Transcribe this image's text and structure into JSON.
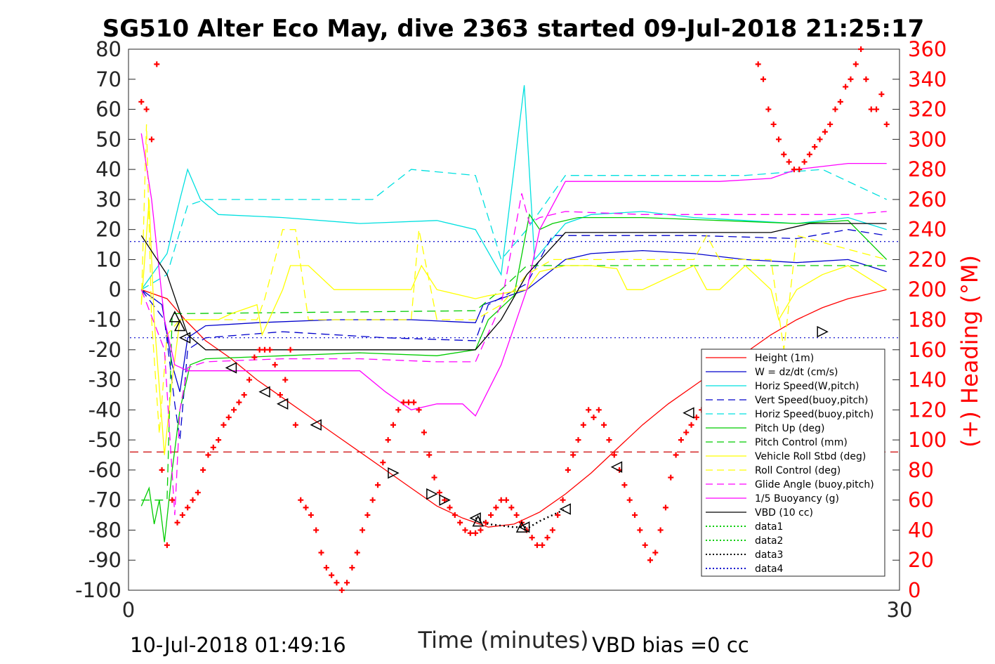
{
  "chart_data": {
    "type": "line",
    "title": "SG510 Alter Eco May, dive 2363 started 09-Jul-2018 21:25:17",
    "xlabel": "Time (minutes)",
    "ylabel_right": "(+) Heading (°M)",
    "xlim": [
      0,
      30
    ],
    "ylim_left": [
      -100,
      80
    ],
    "ylim_right": [
      0,
      360
    ],
    "x_ticks": [
      "0",
      "30"
    ],
    "y_ticks_left": [
      "80",
      "70",
      "60",
      "50",
      "40",
      "30",
      "20",
      "10",
      "0",
      "-10",
      "-20",
      "-30",
      "-40",
      "-50",
      "-60",
      "-70",
      "-80",
      "-90",
      "-100"
    ],
    "y_ticks_right": [
      "360",
      "340",
      "320",
      "300",
      "280",
      "260",
      "240",
      "220",
      "200",
      "180",
      "160",
      "140",
      "120",
      "100",
      "80",
      "60",
      "40",
      "20",
      "0"
    ],
    "grid": false,
    "legend_position": "lower-right",
    "footer_left": "10-Jul-2018 01:49:16",
    "footer_right": "VBD bias =0 cc",
    "series": [
      {
        "name": "Height (1m)",
        "color": "#ff0000",
        "style": "solid",
        "x": [
          0.5,
          1.5,
          2.2,
          3.0,
          4.0,
          5.0,
          6.0,
          7.0,
          8.0,
          9.0,
          10.0,
          11.0,
          12.0,
          13.0,
          14.0,
          15.0,
          16.0,
          17.0,
          18.0,
          19.0,
          20.0,
          21.0,
          22.0,
          23.0,
          24.0,
          25.0,
          26.0,
          27.0,
          28.0,
          29.5
        ],
        "y": [
          0,
          -3,
          -10,
          -17,
          -23,
          -30,
          -36,
          -42,
          -48,
          -54,
          -60,
          -66,
          -72,
          -76,
          -79,
          -78,
          -74,
          -68,
          -61,
          -53,
          -45,
          -38,
          -32,
          -26,
          -21,
          -15,
          -10,
          -6,
          -3,
          0
        ]
      },
      {
        "name": "W = dz/dt (cm/s)",
        "color": "#0000cc",
        "style": "solid",
        "x": [
          0.5,
          1.3,
          1.7,
          2.0,
          2.3,
          3.0,
          5.0,
          8.0,
          11.0,
          13.5,
          13.8,
          15.5,
          17.0,
          18.0,
          20.0,
          22.0,
          24.0,
          26.0,
          28.0,
          29.5
        ],
        "y": [
          0,
          -5,
          -25,
          -34,
          -16,
          -12,
          -11,
          -10,
          -10,
          -11,
          -5,
          0,
          10,
          12,
          13,
          12,
          10,
          9,
          10,
          6
        ]
      },
      {
        "name": "Horiz Speed(W,pitch)",
        "color": "#00e0e0",
        "style": "solid",
        "x": [
          0.5,
          1.5,
          2.0,
          2.3,
          2.8,
          3.5,
          6.0,
          9.0,
          12.0,
          13.5,
          14.5,
          15.4,
          15.8,
          17.0,
          18.0,
          20.0,
          22.0,
          24.0,
          26.0,
          28.0,
          29.5
        ],
        "y": [
          0,
          12,
          30,
          40,
          30,
          25,
          24,
          22,
          23,
          20,
          5,
          68,
          10,
          22,
          25,
          26,
          24,
          23,
          22,
          24,
          20
        ]
      },
      {
        "name": "Vert Speed(buoy,pitch)",
        "color": "#0000cc",
        "style": "dashed",
        "x": [
          0.5,
          1.4,
          1.8,
          2.0,
          2.3,
          3.0,
          6.0,
          10.0,
          13.5,
          14.0,
          15.5,
          16.5,
          18.0,
          22.0,
          26.0,
          28.0,
          29.5
        ],
        "y": [
          0,
          -10,
          -38,
          -50,
          -20,
          -16,
          -14,
          -16,
          -17,
          -5,
          2,
          18,
          18,
          18,
          17,
          20,
          18
        ]
      },
      {
        "name": "Horiz Speed(buoy,pitch)",
        "color": "#00e0e0",
        "style": "dashed",
        "x": [
          0.5,
          1.5,
          2.3,
          3.0,
          6.0,
          9.0,
          9.5,
          11.0,
          13.5,
          14.5,
          15.5,
          17.0,
          20.0,
          24.0,
          27.0,
          29.5
        ],
        "y": [
          0,
          5,
          28,
          30,
          30,
          30,
          30,
          40,
          38,
          10,
          20,
          38,
          38,
          38,
          40,
          30
        ]
      },
      {
        "name": "Pitch Up (deg)",
        "color": "#00cc00",
        "style": "solid",
        "x": [
          0.5,
          0.8,
          1.0,
          1.2,
          1.4,
          1.7,
          2.0,
          2.4,
          3.0,
          6.0,
          9.0,
          12.0,
          13.5,
          14.0,
          15.0,
          15.6,
          16.0,
          16.5,
          17.5,
          20.0,
          23.0,
          26.0,
          28.0,
          29.5
        ],
        "y": [
          -72,
          -66,
          -78,
          -70,
          -84,
          -60,
          -40,
          -25,
          -23,
          -22,
          -21,
          -22,
          -20,
          -10,
          -2,
          25,
          20,
          22,
          24,
          24,
          23,
          22,
          23,
          10
        ]
      },
      {
        "name": "Pitch Control (mm)",
        "color": "#00cc00",
        "style": "dashed",
        "x": [
          0.5,
          1.5,
          1.7,
          1.9,
          13.5,
          14.5,
          15.5,
          29.5
        ],
        "y": [
          -70,
          -70,
          -8,
          -8,
          -7,
          0,
          8,
          8
        ]
      },
      {
        "name": "Vehicle Roll Stbd (deg)",
        "color": "#ffff00",
        "style": "solid",
        "x": [
          0.5,
          0.8,
          1.0,
          1.4,
          1.7,
          2.0,
          2.5,
          3.5,
          4.0,
          5.0,
          5.2,
          6.0,
          6.3,
          7.0,
          8.0,
          10.0,
          11.0,
          11.4,
          12.0,
          13.5,
          14.0,
          15.5,
          16.0,
          17.0,
          18.0,
          19.0,
          19.4,
          20.0,
          22.0,
          22.5,
          23.0,
          24.0,
          25.0,
          25.3,
          26.0,
          27.0,
          28.0,
          29.5
        ],
        "y": [
          -5,
          30,
          -10,
          -55,
          -30,
          -10,
          -10,
          -10,
          -8,
          -5,
          -15,
          0,
          8,
          8,
          0,
          0,
          0,
          8,
          0,
          -3,
          -2,
          0,
          6,
          8,
          8,
          7,
          0,
          0,
          8,
          0,
          0,
          8,
          0,
          -10,
          0,
          5,
          8,
          0
        ]
      },
      {
        "name": "Roll Control (deg)",
        "color": "#ffff00",
        "style": "dashed",
        "x": [
          0.5,
          0.7,
          0.9,
          1.2,
          1.5,
          2.0,
          4.0,
          5.0,
          5.3,
          6.0,
          6.5,
          7.0,
          8.0,
          10.0,
          11.0,
          11.3,
          12.0,
          13.5,
          14.5,
          15.5,
          16.5,
          20.0,
          22.0,
          22.5,
          23.0,
          25.0,
          25.5,
          26.0,
          29.5
        ],
        "y": [
          -5,
          55,
          -10,
          -48,
          -15,
          -10,
          -10,
          -10,
          -3,
          20,
          20,
          -10,
          -10,
          -10,
          -10,
          20,
          -10,
          -10,
          -5,
          5,
          10,
          10,
          10,
          18,
          10,
          10,
          -20,
          18,
          10
        ]
      },
      {
        "name": "Glide Angle (buoy,pitch)",
        "color": "#ff00ff",
        "style": "dashed",
        "x": [
          0.5,
          1.4,
          1.8,
          2.0,
          2.3,
          3.0,
          6.0,
          9.0,
          12.0,
          13.5,
          14.5,
          15.3,
          15.6,
          16.0,
          17.0,
          20.0,
          24.0,
          28.0,
          29.5
        ],
        "y": [
          0,
          -20,
          -75,
          -40,
          -26,
          -24,
          -23,
          -23,
          -24,
          -24,
          -5,
          32,
          22,
          24,
          26,
          25,
          25,
          25,
          26
        ]
      },
      {
        "name": "1/5 Buoyancy (g)",
        "color": "#ff00ff",
        "style": "solid",
        "x": [
          0.5,
          0.9,
          1.4,
          1.8,
          2.3,
          3.0,
          5.0,
          8.0,
          9.0,
          10.0,
          11.0,
          12.0,
          13.0,
          13.5,
          14.5,
          15.5,
          16.0,
          17.0,
          20.0,
          23.0,
          25.0,
          26.0,
          28.0,
          29.5
        ],
        "y": [
          52,
          30,
          -10,
          -25,
          -27,
          -27,
          -27,
          -27,
          -27,
          -34,
          -40,
          -38,
          -38,
          -42,
          -25,
          0,
          20,
          36,
          36,
          36,
          37,
          40,
          42,
          42
        ]
      },
      {
        "name": "VBD (10 cc)",
        "color": "#000000",
        "style": "solid",
        "x": [
          0.5,
          1.5,
          2.3,
          3.0,
          6.0,
          13.5,
          14.5,
          15.5,
          17.0,
          20.0,
          25.0,
          26.5,
          29.5
        ],
        "y": [
          18,
          5,
          -15,
          -20,
          -20,
          -20,
          -10,
          5,
          19,
          19,
          19,
          22,
          22
        ]
      },
      {
        "name": "data1",
        "color": "#00cc00",
        "style": "dotted",
        "x": [],
        "y": []
      },
      {
        "name": "data2",
        "color": "#00cc00",
        "style": "dotted",
        "x": [],
        "y": []
      },
      {
        "name": "data3",
        "color": "#000000",
        "style": "dotted",
        "x": [
          13.5,
          14.0,
          15.0,
          15.6,
          16.0,
          17.0
        ],
        "y": [
          -76,
          -78,
          -79,
          -79,
          -77,
          -73
        ]
      },
      {
        "name": "data4",
        "color": "#0000cc",
        "style": "dotted",
        "x": [],
        "y": []
      }
    ],
    "reference_lines": [
      {
        "y": 16,
        "color": "#0000cc",
        "style": "dotted"
      },
      {
        "y": -16,
        "color": "#0000cc",
        "style": "dotted"
      },
      {
        "y": -54,
        "color": "#cc0000",
        "style": "dashed"
      }
    ],
    "markers": [
      {
        "x": 1.8,
        "y": -9,
        "shape": "triangle-up"
      },
      {
        "x": 2.0,
        "y": -12,
        "shape": "triangle-up"
      },
      {
        "x": 2.2,
        "y": -16,
        "shape": "triangle-left"
      },
      {
        "x": 4.0,
        "y": -26,
        "shape": "triangle-left"
      },
      {
        "x": 5.3,
        "y": -34,
        "shape": "triangle-left"
      },
      {
        "x": 6.0,
        "y": -38,
        "shape": "triangle-left"
      },
      {
        "x": 7.3,
        "y": -45,
        "shape": "triangle-left"
      },
      {
        "x": 10.3,
        "y": -61,
        "shape": "triangle-right"
      },
      {
        "x": 11.8,
        "y": -68,
        "shape": "triangle-right"
      },
      {
        "x": 12.3,
        "y": -70,
        "shape": "triangle-right"
      },
      {
        "x": 13.5,
        "y": -76,
        "shape": "triangle-left"
      },
      {
        "x": 13.6,
        "y": -77,
        "shape": "triangle-up"
      },
      {
        "x": 15.3,
        "y": -79,
        "shape": "triangle-up"
      },
      {
        "x": 15.4,
        "y": -79,
        "shape": "triangle-left"
      },
      {
        "x": 17.0,
        "y": -73,
        "shape": "triangle-left"
      },
      {
        "x": 19.0,
        "y": -59,
        "shape": "triangle-left"
      },
      {
        "x": 21.8,
        "y": -41,
        "shape": "triangle-left"
      },
      {
        "x": 23.5,
        "y": -31,
        "shape": "triangle-left"
      },
      {
        "x": 25.3,
        "y": -24,
        "shape": "triangle-left"
      },
      {
        "x": 25.6,
        "y": -23,
        "shape": "triangle-left"
      },
      {
        "x": 27.0,
        "y": -14,
        "shape": "triangle-right"
      }
    ],
    "heading_points": {
      "name": "(+) Heading (°M)",
      "color": "#ff0000",
      "axis": "right",
      "x": [
        0.5,
        0.7,
        0.9,
        1.1,
        1.3,
        1.5,
        1.7,
        1.9,
        2.1,
        2.3,
        2.5,
        2.7,
        2.9,
        3.1,
        3.3,
        3.5,
        3.7,
        3.9,
        4.1,
        4.3,
        4.5,
        4.7,
        4.9,
        5.1,
        5.3,
        5.5,
        5.7,
        5.9,
        6.1,
        6.3,
        6.5,
        6.7,
        6.9,
        7.1,
        7.3,
        7.5,
        7.7,
        7.9,
        8.1,
        8.3,
        8.5,
        8.7,
        8.9,
        9.1,
        9.3,
        9.5,
        9.7,
        9.9,
        10.1,
        10.3,
        10.5,
        10.7,
        10.9,
        11.1,
        11.3,
        11.5,
        11.7,
        11.9,
        12.1,
        12.3,
        12.5,
        12.7,
        12.9,
        13.1,
        13.3,
        13.5,
        13.7,
        13.9,
        14.1,
        14.3,
        14.5,
        14.7,
        14.9,
        15.1,
        15.3,
        15.5,
        15.7,
        15.9,
        16.1,
        16.3,
        16.5,
        16.7,
        16.9,
        17.1,
        17.3,
        17.5,
        17.7,
        17.9,
        18.1,
        18.3,
        18.5,
        18.7,
        18.9,
        19.1,
        19.3,
        19.5,
        19.7,
        19.9,
        20.1,
        20.3,
        20.5,
        20.7,
        20.9,
        21.1,
        21.3,
        21.5,
        21.7,
        21.9,
        22.1,
        22.3,
        22.5,
        22.7,
        22.9,
        23.1,
        23.3,
        23.5,
        23.7,
        23.9,
        24.1,
        24.3,
        24.5,
        24.7,
        24.9,
        25.1,
        25.3,
        25.5,
        25.7,
        25.9,
        26.1,
        26.3,
        26.5,
        26.7,
        26.9,
        27.1,
        27.3,
        27.5,
        27.7,
        27.9,
        28.1,
        28.3,
        28.5,
        28.7,
        28.9,
        29.1,
        29.3,
        29.5
      ],
      "y": [
        325,
        320,
        300,
        350,
        80,
        30,
        60,
        45,
        50,
        55,
        60,
        65,
        80,
        90,
        95,
        100,
        110,
        115,
        120,
        125,
        130,
        140,
        155,
        160,
        160,
        160,
        150,
        130,
        140,
        160,
        110,
        60,
        55,
        50,
        40,
        25,
        15,
        10,
        5,
        0,
        5,
        15,
        25,
        40,
        50,
        60,
        70,
        85,
        100,
        110,
        120,
        125,
        125,
        125,
        120,
        105,
        90,
        75,
        65,
        60,
        55,
        50,
        45,
        40,
        38,
        38,
        40,
        45,
        50,
        55,
        60,
        60,
        55,
        50,
        45,
        40,
        35,
        30,
        30,
        35,
        40,
        50,
        60,
        80,
        90,
        100,
        110,
        120,
        115,
        120,
        110,
        100,
        90,
        80,
        70,
        60,
        50,
        40,
        30,
        20,
        25,
        40,
        55,
        75,
        90,
        100,
        105,
        110,
        115,
        120,
        125,
        130,
        125,
        120,
        110,
        100,
        80,
        60,
        40,
        20,
        350,
        340,
        320,
        310,
        300,
        290,
        285,
        280,
        280,
        285,
        290,
        295,
        300,
        305,
        310,
        320,
        325,
        335,
        340,
        350,
        360,
        340,
        320,
        320,
        330,
        310
      ]
    }
  }
}
